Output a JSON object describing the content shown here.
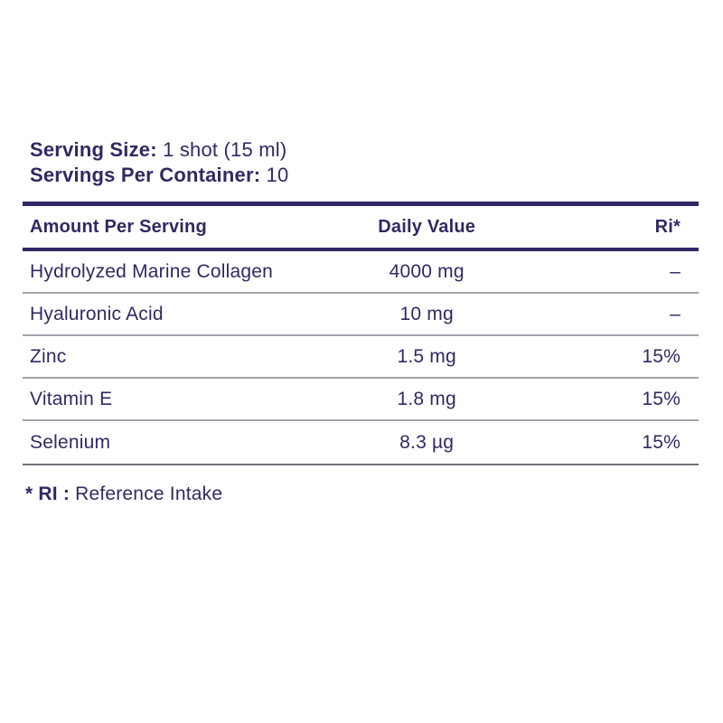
{
  "colors": {
    "text_navy": "#2f2a63",
    "rule_navy": "#322768",
    "row_separator_gray": "#a3a3ad",
    "bottom_rule_gray": "#6f6f7b",
    "background": "#ffffff"
  },
  "serving_info": {
    "serving_size_label": "Serving Size:",
    "serving_size_value": " 1 shot (15 ml)",
    "servings_per_container_label": "Servings Per Container:",
    "servings_per_container_value": " 10"
  },
  "table": {
    "headers": {
      "amount": "Amount Per Serving",
      "daily_value": "Daily Value",
      "ri": "Ri*"
    },
    "rows": [
      {
        "name": "Hydrolyzed Marine Collagen",
        "daily_value": "4000 mg",
        "ri": "–"
      },
      {
        "name": "Hyaluronic Acid",
        "daily_value": "10 mg",
        "ri": "–"
      },
      {
        "name": "Zinc",
        "daily_value": "1.5 mg",
        "ri": "15%"
      },
      {
        "name": "Vitamin E",
        "daily_value": "1.8 mg",
        "ri": "15%"
      },
      {
        "name": "Selenium",
        "daily_value": "8.3 µg",
        "ri": "15%"
      }
    ]
  },
  "footnote": {
    "label": "* RI :",
    "text": " Reference Intake"
  }
}
